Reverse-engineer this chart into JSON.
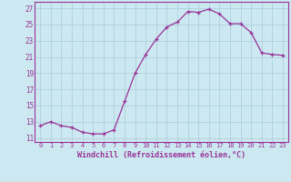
{
  "x": [
    0,
    1,
    2,
    3,
    4,
    5,
    6,
    7,
    8,
    9,
    10,
    11,
    12,
    13,
    14,
    15,
    16,
    17,
    18,
    19,
    20,
    21,
    22,
    23
  ],
  "y": [
    12.5,
    13.0,
    12.5,
    12.3,
    11.7,
    11.5,
    11.5,
    12.0,
    15.5,
    19.0,
    21.3,
    23.2,
    24.7,
    25.3,
    26.6,
    26.5,
    26.9,
    26.3,
    25.1,
    25.1,
    24.0,
    21.5,
    21.3,
    21.2
  ],
  "line_color": "#993399",
  "marker": "+",
  "marker_size": 3,
  "bg_color": "#cce8f0",
  "grid_color": "#aaccdd",
  "xlabel": "Windchill (Refroidissement éolien,°C)",
  "ylabel_ticks": [
    11,
    13,
    15,
    17,
    19,
    21,
    23,
    25,
    27
  ],
  "xtick_labels": [
    "0",
    "1",
    "2",
    "3",
    "4",
    "5",
    "6",
    "7",
    "8",
    "9",
    "10",
    "11",
    "12",
    "13",
    "14",
    "15",
    "16",
    "17",
    "18",
    "19",
    "20",
    "21",
    "22",
    "23"
  ],
  "ylim": [
    10.5,
    27.8
  ],
  "xlim": [
    -0.5,
    23.5
  ],
  "font_color": "#993399",
  "axis_color": "#993399"
}
